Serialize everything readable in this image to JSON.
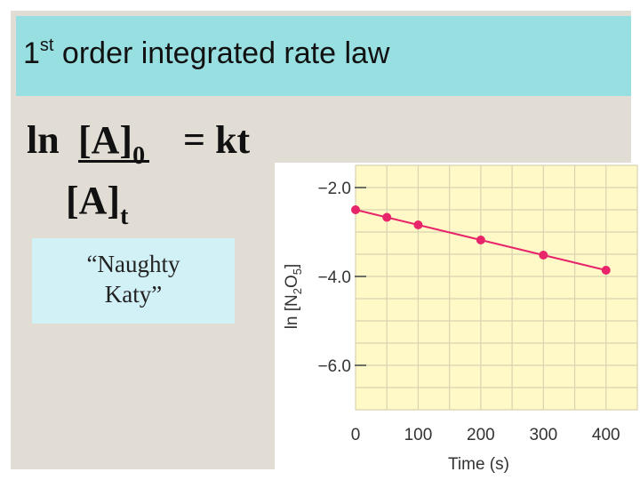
{
  "slide": {
    "title_main": "1",
    "title_sup": "st",
    "title_rest": " order integrated rate law",
    "equation": {
      "ln": "ln",
      "num_base": "[A]",
      "num_sub": "0",
      "rhs": "= kt",
      "den_base": "[A]",
      "den_sub": "t"
    },
    "note_lines": [
      "“Naughty",
      "Katy”"
    ]
  },
  "colors": {
    "title_bar": "#98dfe2",
    "panel": "#e1ddd5",
    "note_box": "#d2f1f6",
    "plot_area": "#fff9c8",
    "series": "#e8246a"
  },
  "chart_data": {
    "type": "scatter",
    "x": [
      0,
      50,
      100,
      200,
      300,
      400
    ],
    "series": [
      {
        "values": [
          -2.5,
          -2.67,
          -2.84,
          -3.18,
          -3.52,
          -3.86
        ]
      }
    ],
    "title": "",
    "xlabel": "Time (s)",
    "ylabel": "ln [N2O5]",
    "ylabel_parts": {
      "prefix": "ln [N",
      "sub1": "2",
      "mid": "O",
      "sub2": "5",
      "suffix": "]"
    },
    "xticks": [
      "0",
      "100",
      "200",
      "300",
      "400"
    ],
    "xtick_values": [
      0,
      100,
      200,
      300,
      400
    ],
    "yticks": [
      "−2.0",
      "−4.0",
      "−6.0"
    ],
    "ytick_values": [
      -2,
      -4,
      -6
    ],
    "xlim": [
      0,
      450
    ],
    "ylim": [
      -7.0,
      -1.5
    ],
    "grid": true,
    "show_fit_line": true
  }
}
